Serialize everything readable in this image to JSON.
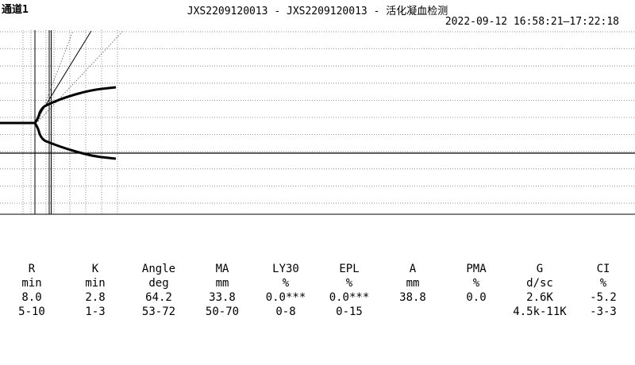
{
  "header": {
    "channel": "通道1",
    "title": "JXS2209120013 - JXS2209120013 - 活化凝血检测",
    "timerange": "2022-09-12 16:58:21—17:22:18"
  },
  "params": {
    "names": [
      "R",
      "K",
      "Angle",
      "MA",
      "LY30",
      "EPL",
      "A",
      "PMA",
      "G",
      "CI"
    ],
    "units": [
      "min",
      "min",
      "deg",
      "mm",
      "%",
      "%",
      "mm",
      "%",
      "d/sc",
      "%"
    ],
    "values": [
      "8.0",
      "2.8",
      "64.2",
      "33.8",
      "0.0***",
      "0.0***",
      "38.8",
      "0.0",
      "2.6K",
      "-5.2"
    ],
    "ranges": [
      "5-10",
      "1-3",
      "53-72",
      "50-70",
      "0-8",
      "0-15",
      "",
      "",
      "4.5k-11K",
      "-3-3"
    ]
  },
  "colors": {
    "background": "#ffffff",
    "trace": "#000000",
    "grid": "#000000"
  }
}
